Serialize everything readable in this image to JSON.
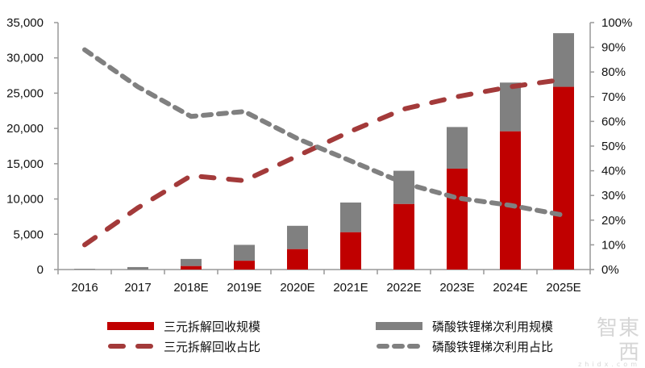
{
  "chart_data": {
    "type": "bar",
    "subtype": "stacked bar + dual-axis dashed lines",
    "title": "",
    "xlabel": "",
    "ylabel_left": "",
    "ylabel_right": "",
    "categories": [
      "2016",
      "2017",
      "2018E",
      "2019E",
      "2020E",
      "2021E",
      "2022E",
      "2023E",
      "2024E",
      "2025E"
    ],
    "left_axis": {
      "min": 0,
      "max": 35000,
      "step": 5000,
      "ticks": [
        "0",
        "5,000",
        "10,000",
        "15,000",
        "20,000",
        "25,000",
        "30,000",
        "35,000"
      ]
    },
    "right_axis": {
      "min": 0,
      "max": 100,
      "step": 10,
      "ticks": [
        "0%",
        "10%",
        "20%",
        "30%",
        "40%",
        "50%",
        "60%",
        "70%",
        "80%",
        "90%",
        "100%"
      ]
    },
    "grid": false,
    "legend_position": "bottom",
    "series": [
      {
        "name": "三元拆解回收规模",
        "type": "bar",
        "axis": "left",
        "color": "#c00000",
        "values": [
          0,
          0,
          500,
          1250,
          2900,
          5300,
          9300,
          14300,
          19600,
          25900
        ]
      },
      {
        "name": "磷酸铁锂梯次利用规模",
        "type": "bar",
        "axis": "left",
        "color": "#808080",
        "values": [
          100,
          350,
          1000,
          2250,
          3300,
          4200,
          4700,
          5900,
          6900,
          7600
        ]
      },
      {
        "name": "三元拆解回收占比",
        "type": "line",
        "style": "dashed",
        "axis": "right",
        "color": "#a33a3a",
        "values": [
          10,
          25,
          38,
          36,
          46,
          56,
          65,
          70,
          74,
          77
        ]
      },
      {
        "name": "磷酸铁锂梯次利用占比",
        "type": "line",
        "style": "dashed",
        "axis": "right",
        "color": "#808080",
        "values": [
          89,
          74,
          62,
          64,
          53,
          44,
          35,
          29,
          26,
          22
        ]
      }
    ]
  },
  "legend": {
    "items": [
      {
        "label": "三元拆解回收规模",
        "kind": "bar",
        "color": "#c00000"
      },
      {
        "label": "磷酸铁锂梯次利用规模",
        "kind": "bar",
        "color": "#808080"
      },
      {
        "label": "三元拆解回收占比",
        "kind": "dash",
        "color": "#a33a3a"
      },
      {
        "label": "磷酸铁锂梯次利用占比",
        "kind": "dash",
        "color": "#808080"
      }
    ]
  },
  "watermark": {
    "text": "智東西",
    "sub": "zhidx.com"
  }
}
